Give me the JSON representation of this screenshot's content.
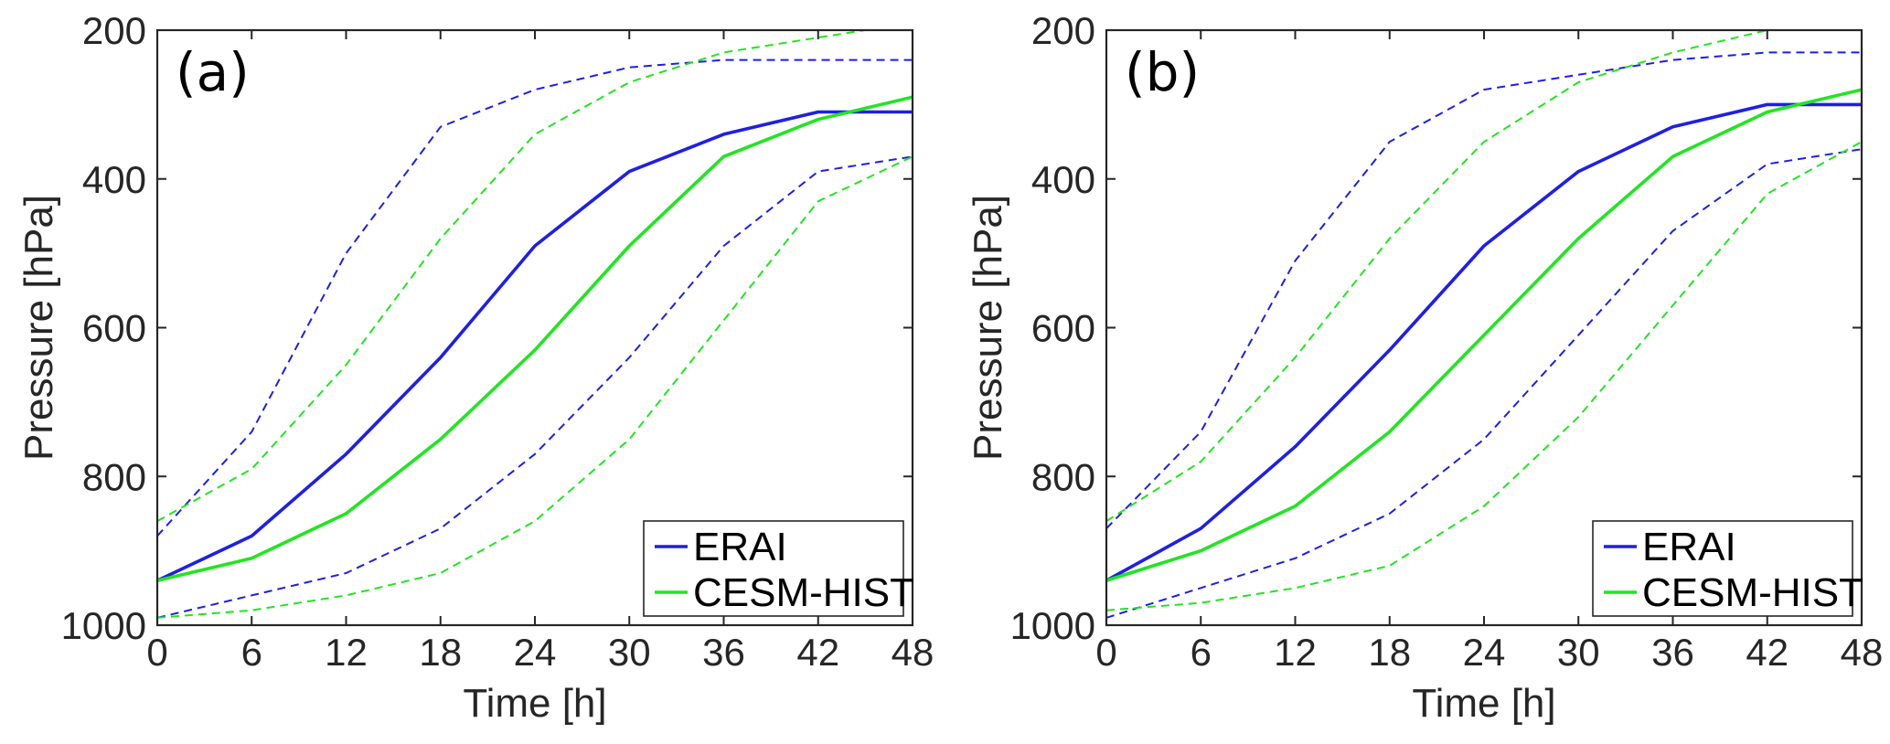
{
  "chart_data": [
    {
      "type": "line",
      "panel_label": "(a)",
      "xlabel": "Time [h]",
      "ylabel": "Pressure [hPa]",
      "xlim": [
        0,
        48
      ],
      "ylim": [
        200,
        1000
      ],
      "y_reversed": true,
      "xticks": [
        "0",
        "6",
        "12",
        "18",
        "24",
        "30",
        "36",
        "42",
        "48"
      ],
      "yticks": [
        "200",
        "400",
        "600",
        "800",
        "1000"
      ],
      "grid": false,
      "legend": {
        "position": "bottom-right",
        "entries": [
          "ERAI",
          "CESM-HIST"
        ]
      },
      "colors": {
        "ERAI": "#1f1fe6",
        "CESM-HIST": "#20e620"
      },
      "x": [
        0,
        6,
        12,
        18,
        24,
        30,
        36,
        42,
        48
      ],
      "series": [
        {
          "name": "ERAI",
          "style": "solid",
          "color": "#1f1fe6",
          "values": [
            940,
            880,
            770,
            640,
            490,
            390,
            340,
            310,
            310
          ]
        },
        {
          "name": "CESM-HIST",
          "style": "solid",
          "color": "#20e620",
          "values": [
            940,
            910,
            850,
            750,
            630,
            490,
            370,
            320,
            290
          ]
        },
        {
          "style": "dashed",
          "color": "#1f1fe6",
          "values": [
            880,
            740,
            500,
            330,
            280,
            250,
            240,
            240,
            240
          ]
        },
        {
          "style": "dashed",
          "color": "#1f1fe6",
          "values": [
            990,
            960,
            930,
            870,
            770,
            640,
            490,
            390,
            370
          ]
        },
        {
          "style": "dashed",
          "color": "#20e620",
          "values": [
            860,
            790,
            650,
            480,
            340,
            270,
            230,
            210,
            190
          ]
        },
        {
          "style": "dashed",
          "color": "#20e620",
          "values": [
            990,
            980,
            960,
            930,
            860,
            750,
            590,
            430,
            370
          ]
        }
      ]
    },
    {
      "type": "line",
      "panel_label": "(b)",
      "xlabel": "Time [h]",
      "ylabel": "Pressure [hPa]",
      "xlim": [
        0,
        48
      ],
      "ylim": [
        200,
        1000
      ],
      "y_reversed": true,
      "xticks": [
        "0",
        "6",
        "12",
        "18",
        "24",
        "30",
        "36",
        "42",
        "48"
      ],
      "yticks": [
        "200",
        "400",
        "600",
        "800",
        "1000"
      ],
      "grid": false,
      "legend": {
        "position": "bottom-right",
        "entries": [
          "ERAI",
          "CESM-HIST"
        ]
      },
      "colors": {
        "ERAI": "#1f1fe6",
        "CESM-HIST": "#20e620"
      },
      "x": [
        0,
        6,
        12,
        18,
        24,
        30,
        36,
        42,
        48
      ],
      "series": [
        {
          "name": "ERAI",
          "style": "solid",
          "color": "#1f1fe6",
          "values": [
            940,
            870,
            760,
            630,
            490,
            390,
            330,
            300,
            300
          ]
        },
        {
          "name": "CESM-HIST",
          "style": "solid",
          "color": "#20e620",
          "values": [
            940,
            900,
            840,
            740,
            610,
            480,
            370,
            310,
            280
          ]
        },
        {
          "style": "dashed",
          "color": "#1f1fe6",
          "values": [
            870,
            740,
            510,
            350,
            280,
            260,
            240,
            230,
            230
          ]
        },
        {
          "style": "dashed",
          "color": "#1f1fe6",
          "values": [
            990,
            950,
            910,
            850,
            750,
            610,
            470,
            380,
            360
          ]
        },
        {
          "style": "dashed",
          "color": "#20e620",
          "values": [
            860,
            780,
            640,
            480,
            350,
            270,
            230,
            200,
            180
          ]
        },
        {
          "style": "dashed",
          "color": "#20e620",
          "values": [
            980,
            970,
            950,
            920,
            840,
            720,
            570,
            420,
            350
          ]
        }
      ]
    }
  ]
}
